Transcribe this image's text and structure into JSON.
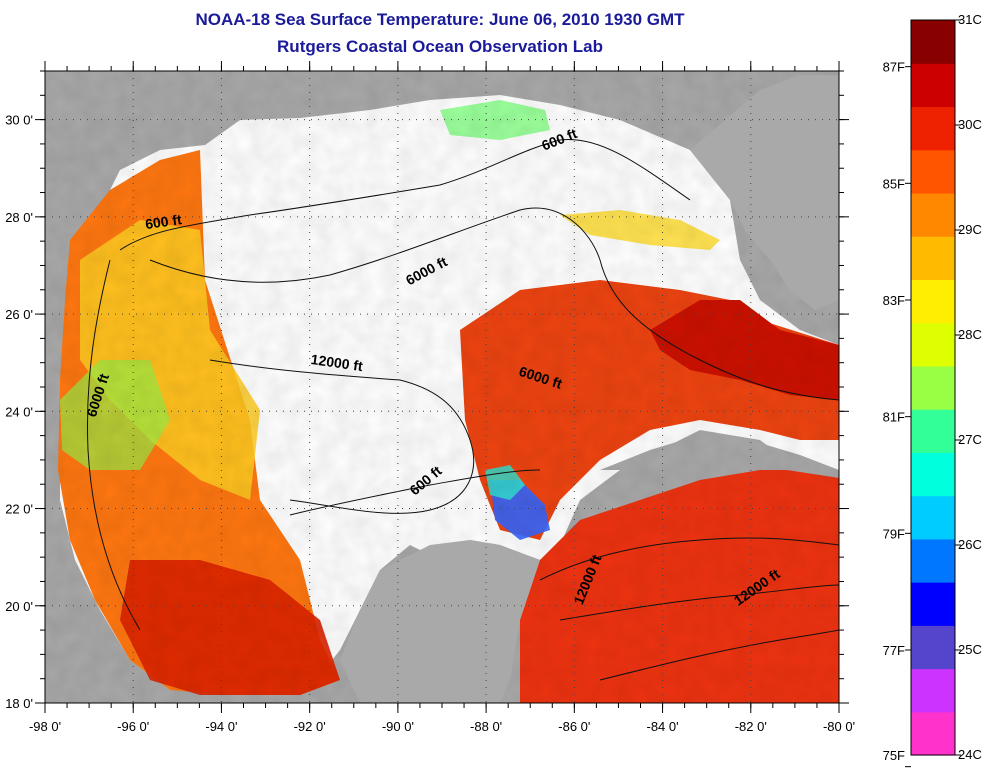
{
  "title": {
    "line1": "NOAA-18 Sea Surface Temperature:  June 06, 2010 1930 GMT",
    "line2": "Rutgers Coastal Ocean Observation Lab"
  },
  "map": {
    "lon_range": [
      -98,
      -80
    ],
    "lat_range": [
      18,
      31
    ],
    "x_ticks": [
      {
        "lon": -98,
        "label": "-98 0'"
      },
      {
        "lon": -96,
        "label": "-96 0'"
      },
      {
        "lon": -94,
        "label": "-94 0'"
      },
      {
        "lon": -92,
        "label": "-92 0'"
      },
      {
        "lon": -90,
        "label": "-90 0'"
      },
      {
        "lon": -88,
        "label": "-88 0'"
      },
      {
        "lon": -86,
        "label": "-86 0'"
      },
      {
        "lon": -84,
        "label": "-84 0'"
      },
      {
        "lon": -82,
        "label": "-82 0'"
      },
      {
        "lon": -80,
        "label": "-80 0'"
      }
    ],
    "y_ticks": [
      {
        "lat": 30,
        "label": "30 0'"
      },
      {
        "lat": 28,
        "label": "28 0'"
      },
      {
        "lat": 26,
        "label": "26 0'"
      },
      {
        "lat": 24,
        "label": "24 0'"
      },
      {
        "lat": 22,
        "label": "22 0'"
      },
      {
        "lat": 20,
        "label": "20 0'"
      },
      {
        "lat": 18,
        "label": "18 0'"
      }
    ],
    "contour_labels": [
      {
        "text": "600 ft",
        "lon": -86.3,
        "lat": 29.5,
        "rot": -22
      },
      {
        "text": "600 ft",
        "lon": -95.3,
        "lat": 27.8,
        "rot": -8
      },
      {
        "text": "6000 ft",
        "lon": -89.3,
        "lat": 26.8,
        "rot": -28
      },
      {
        "text": "12000 ft",
        "lon": -91.4,
        "lat": 24.9,
        "rot": 8
      },
      {
        "text": "6000 ft",
        "lon": -96.7,
        "lat": 24.3,
        "rot": -72
      },
      {
        "text": "6000 ft",
        "lon": -86.8,
        "lat": 24.6,
        "rot": 18
      },
      {
        "text": "600 ft",
        "lon": -89.3,
        "lat": 22.5,
        "rot": -40
      },
      {
        "text": "12000 ft",
        "lon": -85.6,
        "lat": 20.5,
        "rot": -68
      },
      {
        "text": "12000 ft",
        "lon": -81.8,
        "lat": 20.3,
        "rot": -35
      }
    ]
  },
  "colorbar": {
    "colors": [
      "#ff33cc",
      "#cc33ff",
      "#5544cc",
      "#0000ff",
      "#0077ff",
      "#00ccff",
      "#00ffdd",
      "#33ff99",
      "#99ff44",
      "#ddff00",
      "#ffee00",
      "#ffbb00",
      "#ff8800",
      "#ff5500",
      "#ee2200",
      "#cc0000",
      "#880000"
    ],
    "celsius": [
      {
        "value": 31,
        "label": "31C"
      },
      {
        "value": 30,
        "label": "30C"
      },
      {
        "value": 29,
        "label": "29C"
      },
      {
        "value": 28,
        "label": "28C"
      },
      {
        "value": 27,
        "label": "27C"
      },
      {
        "value": 26,
        "label": "26C"
      },
      {
        "value": 25,
        "label": "25C"
      },
      {
        "value": 24,
        "label": "24C"
      }
    ],
    "fahrenheit": [
      {
        "value": 87,
        "label": "87F"
      },
      {
        "value": 85,
        "label": "85F"
      },
      {
        "value": 83,
        "label": "83F"
      },
      {
        "value": 81,
        "label": "81F"
      },
      {
        "value": 79,
        "label": "79F"
      },
      {
        "value": 77,
        "label": "77F"
      },
      {
        "value": 75,
        "label": "75F"
      }
    ]
  },
  "colors": {
    "land": "#a9a9a9",
    "cloud": "#ffffff",
    "title": "#1a1a9a"
  }
}
